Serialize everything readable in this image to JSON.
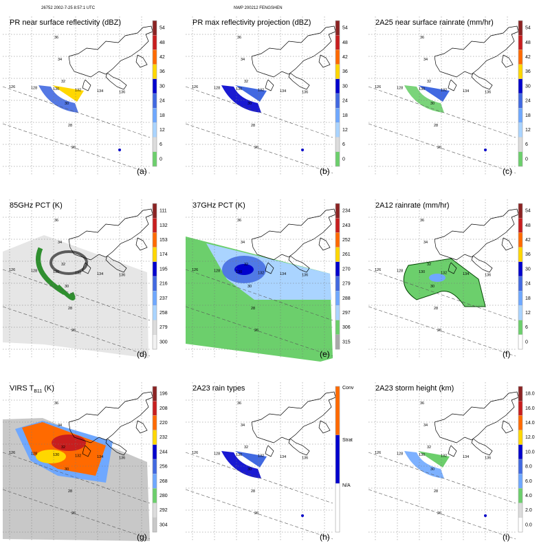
{
  "header": {
    "left": "26752 2002-7-25 8:57:1 UTC",
    "right": "NWP 200212 FENGSHEN"
  },
  "map": {
    "lon_labels": [
      "126",
      "128",
      "130",
      "132",
      "134",
      "136"
    ],
    "lat_labels": [
      "26",
      "28",
      "30",
      "32",
      "34",
      "36"
    ]
  },
  "panels": [
    {
      "title": "PR near surface reflectivity (dBZ)",
      "label": "(a)",
      "ticks": [
        "54",
        "48",
        "42",
        "36",
        "30",
        "24",
        "18",
        "12",
        "6",
        "0"
      ],
      "colors": [
        "#8b2323",
        "#c81e1e",
        "#ff6a00",
        "#ffd700",
        "#0000cd",
        "#4169e1",
        "#6fa8ff",
        "#aad4ff",
        "#dcdcdc",
        "#6ccf6c"
      ]
    },
    {
      "title": "PR max reflectivity projection (dBZ)",
      "label": "(b)",
      "ticks": [
        "54",
        "48",
        "42",
        "36",
        "30",
        "24",
        "18",
        "12",
        "6",
        "0"
      ],
      "colors": [
        "#8b2323",
        "#c81e1e",
        "#ff6a00",
        "#ffd700",
        "#0000cd",
        "#4169e1",
        "#6fa8ff",
        "#aad4ff",
        "#dcdcdc",
        "#6ccf6c"
      ]
    },
    {
      "title": "2A25 near surface rainrate (mm/hr)",
      "label": "(c)",
      "ticks": [
        "54",
        "48",
        "42",
        "36",
        "30",
        "24",
        "18",
        "12",
        "6",
        "0"
      ],
      "colors": [
        "#8b2323",
        "#c81e1e",
        "#ff6a00",
        "#ffd700",
        "#0000cd",
        "#4169e1",
        "#6fa8ff",
        "#aad4ff",
        "#dcdcdc",
        "#6ccf6c"
      ]
    },
    {
      "title": "85GHz PCT (K)",
      "label": "(d)",
      "ticks": [
        "111",
        "132",
        "153",
        "174",
        "195",
        "216",
        "237",
        "258",
        "279",
        "300"
      ],
      "colors": [
        "#8b2323",
        "#c81e1e",
        "#ff6a00",
        "#ffd700",
        "#0000cd",
        "#4169e1",
        "#6fa8ff",
        "#aad4ff",
        "#dcdcdc",
        "#f2f2f2"
      ]
    },
    {
      "title": "37GHz PCT (K)",
      "label": "(e)",
      "ticks": [
        "234",
        "243",
        "252",
        "261",
        "270",
        "279",
        "288",
        "297",
        "306",
        "315"
      ],
      "colors": [
        "#8b2323",
        "#c81e1e",
        "#ff6a00",
        "#ffd700",
        "#0000cd",
        "#4169e1",
        "#6fa8ff",
        "#aad4ff",
        "#6ccf6c",
        "#aaaaaa"
      ]
    },
    {
      "title": "2A12 rainrate (mm/hr)",
      "label": "(f)",
      "ticks": [
        "54",
        "48",
        "42",
        "36",
        "30",
        "24",
        "18",
        "12",
        "6",
        "0"
      ],
      "colors": [
        "#8b2323",
        "#c81e1e",
        "#ff6a00",
        "#ffd700",
        "#0000cd",
        "#4169e1",
        "#6fa8ff",
        "#aad4ff",
        "#6ccf6c",
        "#ffffff"
      ]
    },
    {
      "title": "VIRS T",
      "title_sub": "B11",
      "title_suffix": " (K)",
      "label": "(g)",
      "ticks": [
        "196",
        "208",
        "220",
        "232",
        "244",
        "256",
        "268",
        "280",
        "292",
        "304"
      ],
      "colors": [
        "#8b2323",
        "#c81e1e",
        "#ff6a00",
        "#ffd700",
        "#0000cd",
        "#4169e1",
        "#6fa8ff",
        "#6ccf6c",
        "#dcdcdc",
        "#c8c8c8"
      ]
    },
    {
      "title": "2A23 rain types",
      "label": "(h)",
      "ticks": [
        "Conv",
        "Strat",
        "N/A"
      ],
      "colors": [
        "#ff6a00",
        "#0000cd",
        "#ffffff"
      ]
    },
    {
      "title": "2A23 storm height (km)",
      "label": "(i)",
      "ticks": [
        "18.0",
        "16.0",
        "14.0",
        "12.0",
        "10.0",
        "8.0",
        "6.0",
        "4.0",
        "2.0",
        "0.0"
      ],
      "colors": [
        "#8b2323",
        "#c81e1e",
        "#ff6a00",
        "#ffd700",
        "#0000cd",
        "#4169e1",
        "#6fa8ff",
        "#6ccf6c",
        "#dcdcdc",
        "#ffffff"
      ]
    }
  ]
}
